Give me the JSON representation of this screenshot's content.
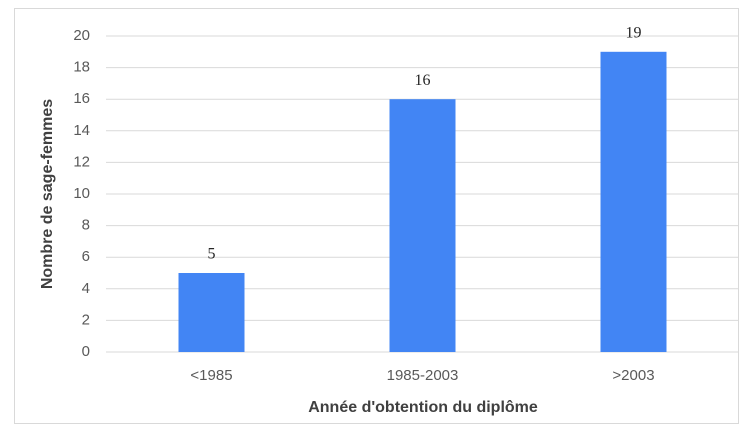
{
  "chart_data": {
    "type": "bar",
    "x_label": "Année d'obtention du diplôme",
    "y_label": "Nombre de sage-femmes",
    "categories": [
      "<1985",
      "1985-2003",
      ">2003"
    ],
    "values": [
      5,
      16,
      19
    ],
    "color": "#4285f4",
    "ylim": [
      0,
      20
    ],
    "yticks": [
      0,
      2,
      4,
      6,
      8,
      10,
      12,
      14,
      16,
      18,
      20
    ],
    "grid": true
  }
}
